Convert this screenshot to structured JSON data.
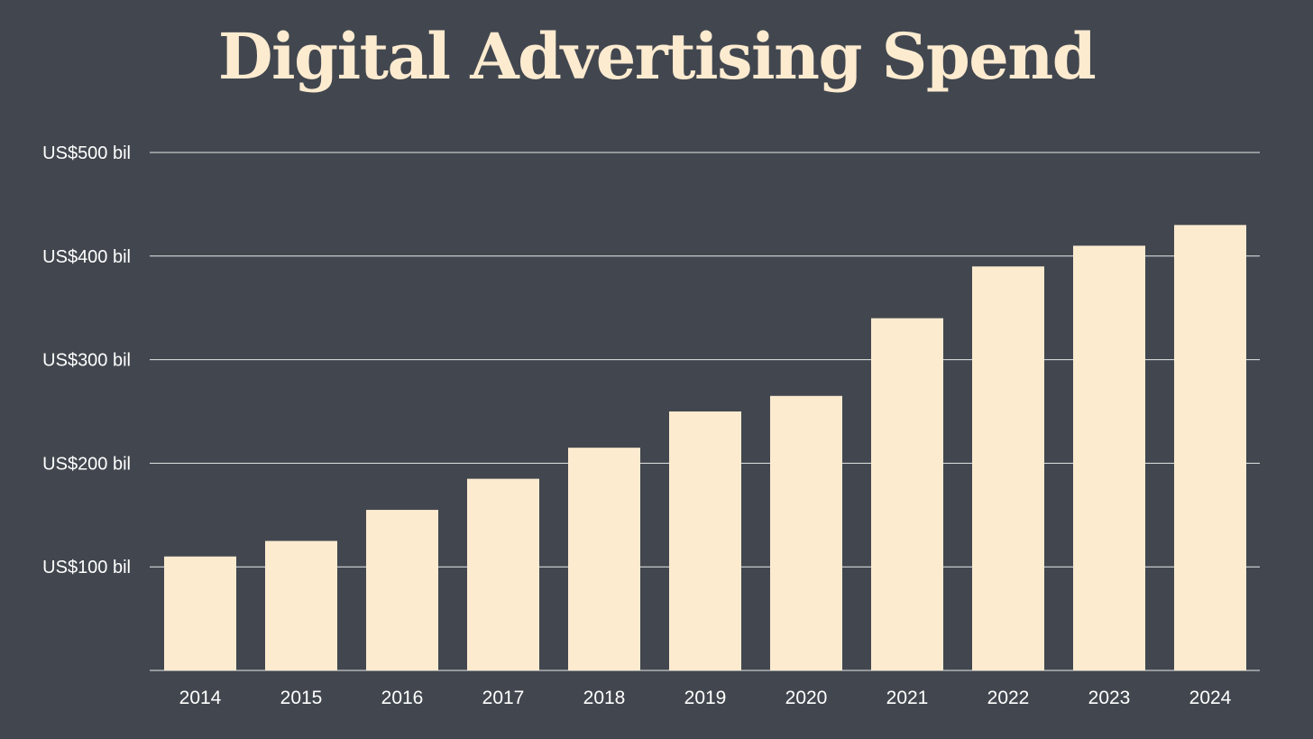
{
  "colors": {
    "background": "#42474f",
    "bar": "#fdebd0",
    "text": "#ffffff",
    "title": "#fdebd0",
    "grid": "#e8e8e8"
  },
  "chart_data": {
    "type": "bar",
    "title": "Digital Advertising Spend",
    "xlabel": "",
    "ylabel": "",
    "categories": [
      "2014",
      "2015",
      "2016",
      "2017",
      "2018",
      "2019",
      "2020",
      "2021",
      "2022",
      "2023",
      "2024"
    ],
    "values": [
      110,
      125,
      155,
      185,
      215,
      250,
      265,
      340,
      390,
      410,
      430
    ],
    "unit": "US$ billions",
    "ylim": [
      0,
      500
    ],
    "yticks": [
      100,
      200,
      300,
      400,
      500
    ],
    "ytick_labels": [
      "US$100 bil",
      "US$200 bil",
      "US$300 bil",
      "US$400 bil",
      "US$500 bil"
    ],
    "grid": true,
    "legend": "none"
  }
}
